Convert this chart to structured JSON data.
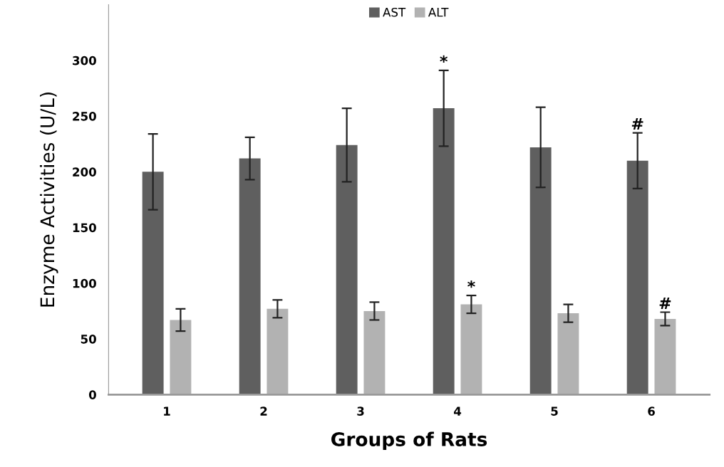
{
  "chart_data": {
    "type": "bar",
    "xlabel": "Groups of Rats",
    "ylabel": "Enzyme Activities (U/L)",
    "categories": [
      "1",
      "2",
      "3",
      "4",
      "5",
      "6"
    ],
    "series": [
      {
        "name": "AST",
        "color": "#5f5f5f",
        "values": [
          200,
          212,
          224,
          257,
          222,
          210
        ],
        "errors": [
          34,
          19,
          33,
          34,
          36,
          25
        ]
      },
      {
        "name": "ALT",
        "color": "#b2b2b2",
        "values": [
          67,
          77,
          75,
          81,
          73,
          68
        ],
        "errors": [
          10,
          8,
          8,
          8,
          8,
          6
        ]
      }
    ],
    "ylim": [
      0,
      350
    ],
    "yticks": [
      0,
      50,
      100,
      150,
      200,
      250,
      300
    ],
    "grid": false,
    "legend": "top",
    "annotations": [
      {
        "text": "*",
        "x": "4",
        "y": 257
      },
      {
        "text": "*",
        "x": "4",
        "y": 81
      },
      {
        "text": "#",
        "x": "6",
        "y": 210
      },
      {
        "text": "#",
        "x": "6",
        "y": 68
      }
    ]
  }
}
